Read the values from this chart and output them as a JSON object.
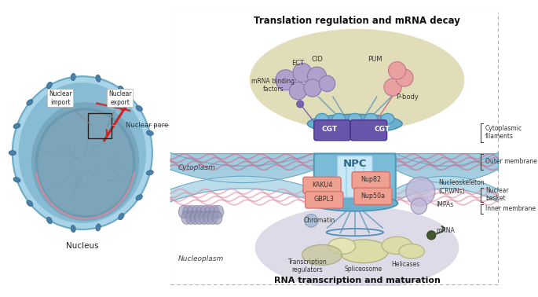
{
  "bg_color": "#ffffff",
  "left_panel": {
    "nucleus_outer_color": "#a8d4ea",
    "nucleus_mid_color": "#7ab8d4",
    "nucleoplasm_color": "#8ab4c8",
    "chromatin_color": "#9ab0be",
    "pore_color": "#5a90b0",
    "red_color": "#cc2222",
    "pink_color": "#dd8899",
    "box_color": "#222222",
    "dash_color": "#999999"
  },
  "right_panel": {
    "cyto_bg": "#f0f8fe",
    "nucleo_bg": "#e8e4f0",
    "olive_bg": "#d8d2a0",
    "membrane_color": "#a0cce0",
    "membrane_edge": "#6aaac8",
    "membrane_inner": "#b8dcea",
    "pink_wave": "#cc7090",
    "pink_wave2": "#e090a8",
    "npc_blue": "#7abcd8",
    "npc_dark": "#4a90b8",
    "npc_light": "#c0e0f4",
    "npc_ring": "#5a9ab8",
    "cgt_purple": "#6655aa",
    "mrna_sphere": "#b0a0cc",
    "mrna_sphere_edge": "#8878b0",
    "pbody_color": "#e8a0a0",
    "pbody_edge": "#c07888",
    "pink_label": "#f0a090",
    "pink_label_edge": "#d07070",
    "nucleo_sphere": "#c0b8d8",
    "impa_sphere": "#c0b8d8",
    "spliceosome": "#dcdca8",
    "helicase": "#dcdca8",
    "mrna_dot": "#445533",
    "chrom_spiral": "#9898b8"
  },
  "labels": {
    "nucleus": "Nucleus",
    "nuclear_import": "Nuclear\nimport",
    "nuclear_export": "Nuclear\nexport",
    "nuclear_pore": "Nuclear pore",
    "title": "Translation regulation and mRNA decay",
    "subtitle": "RNA transcription and maturation",
    "cytoplasm": "Cytoplasm",
    "nucleoplasm": "Nucleoplasm",
    "npc": "NPC",
    "ect": "ECT",
    "cid": "CID",
    "pum": "PUM",
    "pbody": "P-body",
    "mrna_binding": "mRNA binding\nfactors",
    "cytoplasmic_filaments": "Cytoplasmic\nfilaments",
    "outer_membrane": "Outer membrane",
    "nuclear_basket": "Nuclear\nbasket",
    "inner_membrane": "Inner membrane",
    "kaku4": "KAKU4",
    "gbpl3": "GBPL3",
    "nup82": "Nup82",
    "nup50a": "Nup50a",
    "nucleoskeleton": "Nucleoskeleton\n(CRWNs)",
    "impas": "IMPAs",
    "chromatin": "Chromatin",
    "transcription_regulators": "Transcription\nregulators",
    "spliceosome": "Spliceosome",
    "helicases": "Helicases",
    "mrna": "mRNA",
    "cgt": "CGT"
  }
}
